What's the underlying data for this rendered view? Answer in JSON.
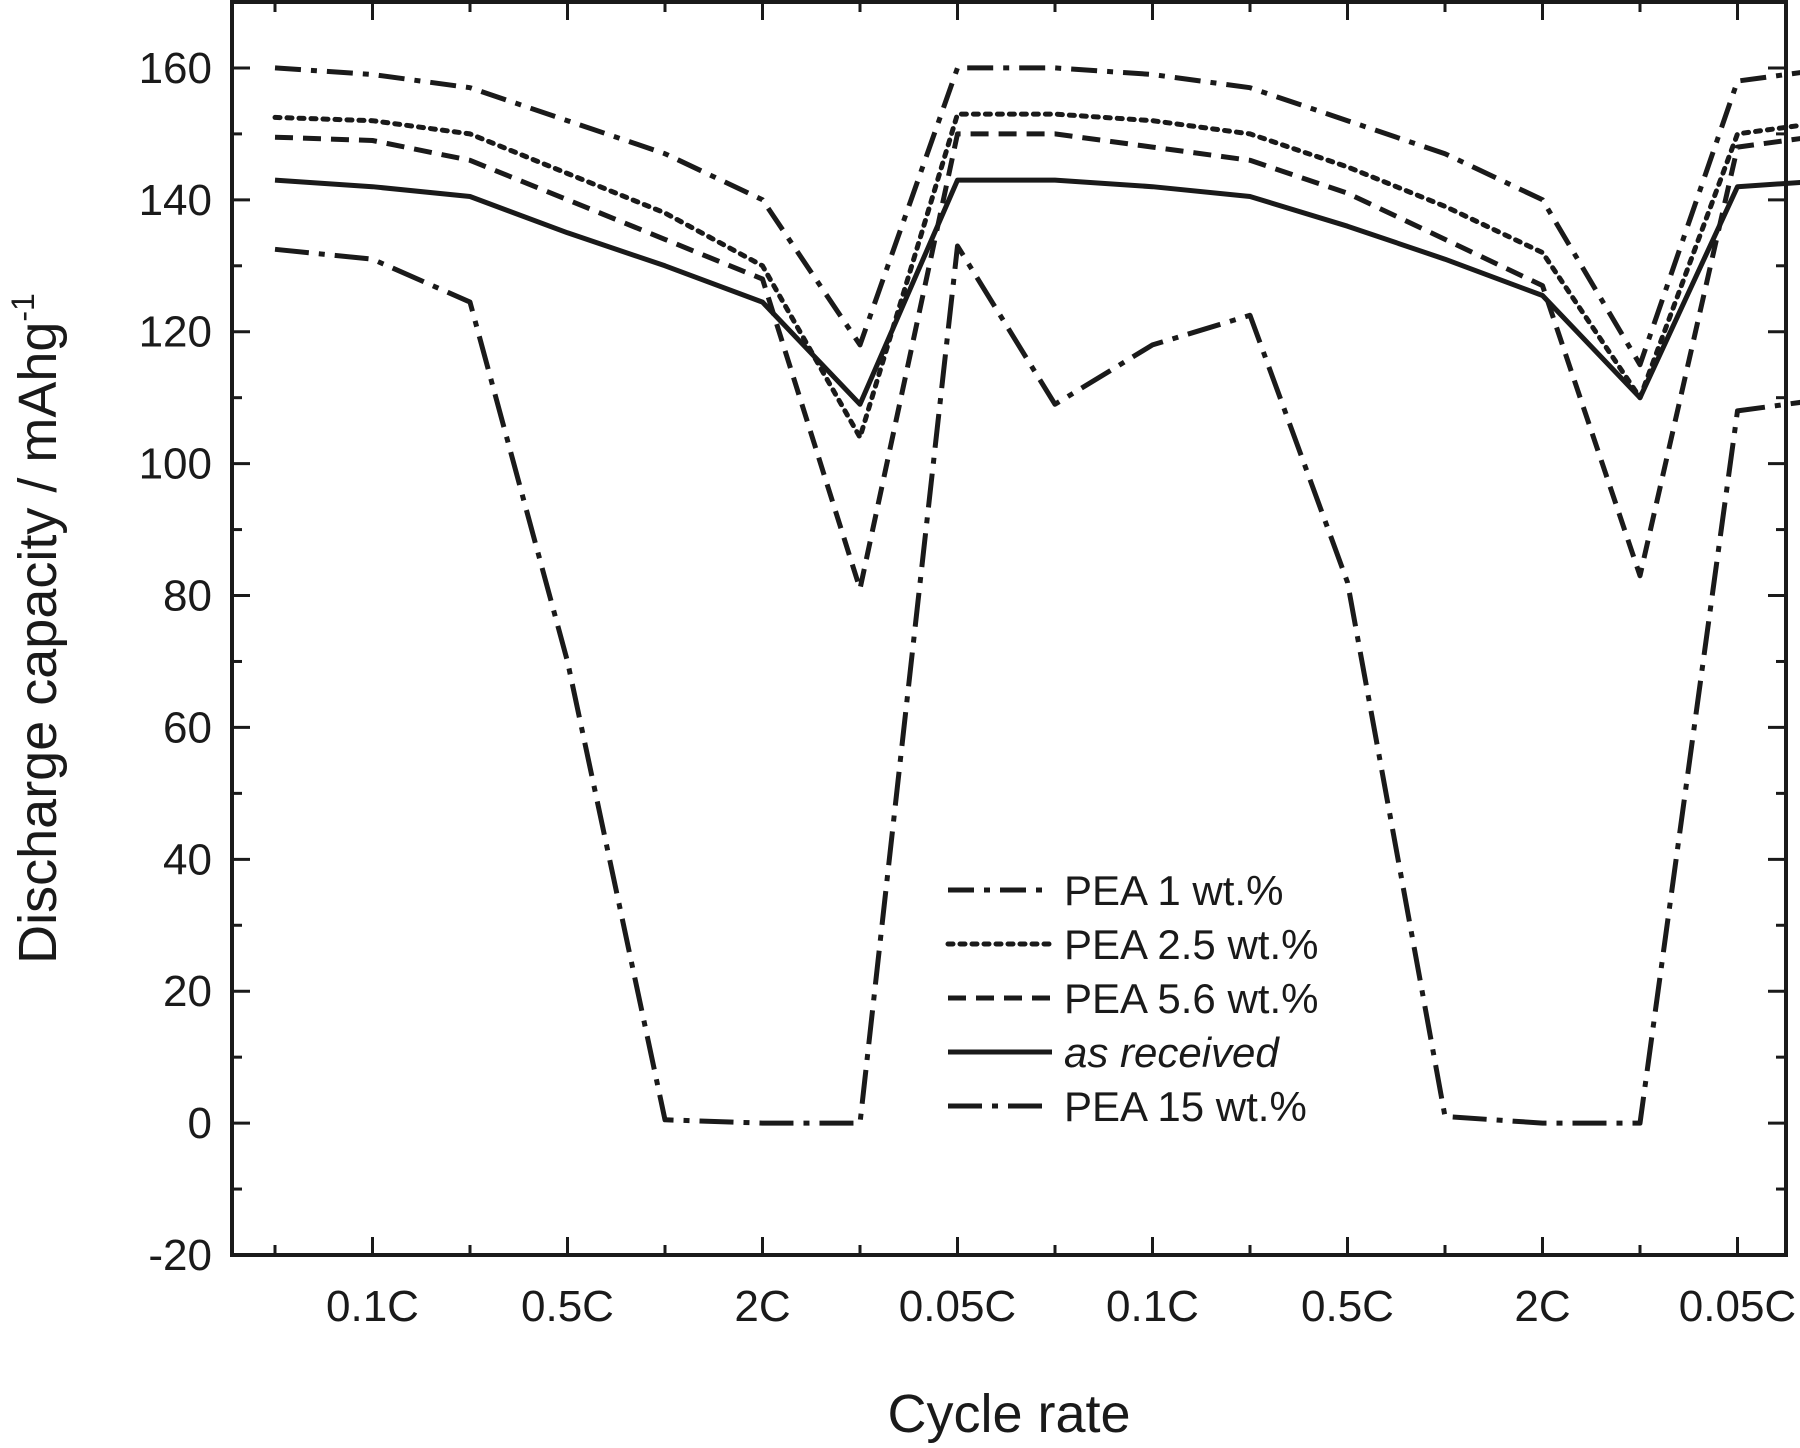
{
  "chart_data": {
    "type": "line",
    "xlabel": "Cycle rate",
    "ylabel": "Discharge capacity / mAhg",
    "ylabel_superscript": "-1",
    "ylim": [
      -20,
      170
    ],
    "y_ticks": [
      -20,
      0,
      20,
      40,
      60,
      80,
      100,
      120,
      140,
      160
    ],
    "x_tick_labels": [
      "0.1C",
      "0.5C",
      "2C",
      "0.05C",
      "0.1C",
      "0.5C",
      "2C",
      "0.05C"
    ],
    "x": [
      0,
      1,
      2,
      3,
      4,
      5,
      6,
      7,
      8,
      9,
      10,
      11,
      12,
      13,
      14,
      15,
      16
    ],
    "grid": false,
    "legend_position": "lower-right",
    "series": [
      {
        "name": "PEA 1 wt.%",
        "style": "dash-dot",
        "values": [
          160,
          159,
          157,
          152,
          147,
          140,
          118,
          160,
          160,
          159,
          157,
          152,
          147,
          140,
          115,
          158,
          160
        ]
      },
      {
        "name": "PEA 2.5 wt.%",
        "style": "dotted",
        "values": [
          152.5,
          152,
          150,
          144,
          138,
          130,
          104,
          153,
          153,
          152,
          150,
          145,
          139,
          132,
          110,
          150,
          152
        ]
      },
      {
        "name": "PEA 5.6 wt.%",
        "style": "dashed",
        "values": [
          149.5,
          149,
          146,
          140,
          134,
          128,
          81,
          150,
          150,
          148,
          146,
          141,
          134,
          127,
          83,
          148,
          150
        ]
      },
      {
        "name": "as received",
        "style": "solid",
        "values": [
          143,
          142,
          140.5,
          135,
          130,
          124.5,
          109,
          143,
          143,
          142,
          140.5,
          136,
          131,
          125.5,
          110,
          142,
          143
        ]
      },
      {
        "name": "PEA 15 wt.%",
        "style": "dash-dot-long",
        "values": [
          132.5,
          131,
          124.5,
          70,
          0.5,
          0,
          0,
          133,
          109,
          118,
          122.5,
          82,
          1,
          0,
          0,
          108,
          110
        ]
      }
    ]
  }
}
